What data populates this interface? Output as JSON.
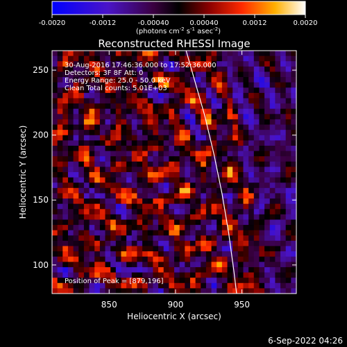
{
  "chart_data": {
    "type": "heatmap",
    "title": "Reconstructed RHESSI Image",
    "xlabel": "Heliocentric X (arcsec)",
    "ylabel": "Heliocentric Y (arcsec)",
    "xlim": [
      807,
      991
    ],
    "ylim": [
      78,
      265
    ],
    "x_ticks": [
      850,
      900,
      950
    ],
    "y_ticks": [
      100,
      150,
      200,
      250
    ],
    "colorbar": {
      "range": [
        -0.002,
        0.002
      ],
      "tick_values": [
        -0.002,
        -0.0012,
        -0.0004,
        0.0004,
        0.0012,
        0.002
      ],
      "tick_labels": [
        "-0.0020",
        "-0.0012",
        "-0.00040",
        "0.00040",
        "0.0012",
        "0.0020"
      ],
      "label_main": "(photons cm",
      "label_exp1": "-2",
      "label_mid": " s",
      "label_exp2": "-1",
      "label_end": " asec",
      "label_exp3": "-2",
      "label_close": ")"
    },
    "annotations": [
      "30-Aug-2016 17:46:36.000 to 17:52:36.000",
      "Detectors: 3F 8F   Att: 0",
      "Energy Range: 25.0 - 50.0 keV",
      "Clean    Total counts: 5.01E+03"
    ],
    "peak_label": "Position of Peak = [879,196]",
    "peak": [
      879,
      196
    ],
    "limb": [
      [
        908,
        265
      ],
      [
        915,
        240
      ],
      [
        922,
        215
      ],
      [
        929,
        185
      ],
      [
        935,
        155
      ],
      [
        940,
        125
      ],
      [
        944,
        95
      ],
      [
        946,
        78
      ]
    ],
    "grid_cells": 46
  },
  "footer_date": "6-Sep-2022 04:26"
}
